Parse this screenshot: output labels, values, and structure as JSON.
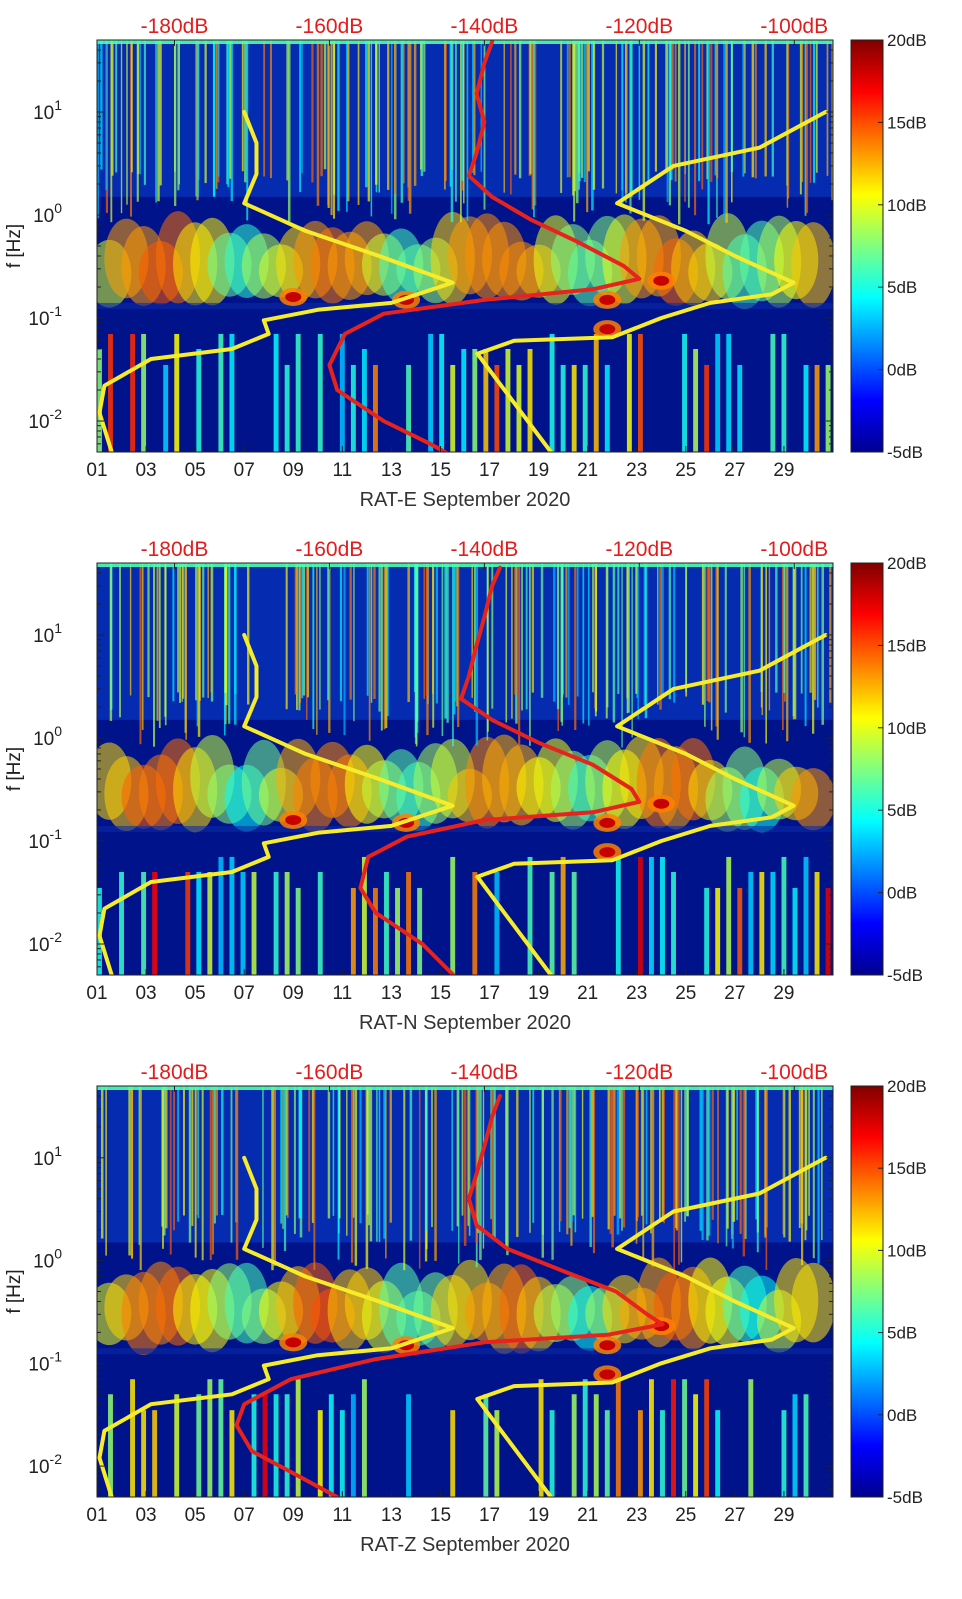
{
  "colors": {
    "background_low": "#00138a",
    "psd_curve": "#e8231e",
    "model_curves": "#f6ec2a",
    "top_axis_text": "#e51c1c"
  },
  "colormap_stops": [
    "#00008f",
    "#0000ff",
    "#0080ff",
    "#00ffff",
    "#80ff80",
    "#ffff00",
    "#ff8000",
    "#ff0000",
    "#800000"
  ],
  "chart_data": [
    {
      "type": "heatmap",
      "title": "",
      "xlabel": "RAT-E September 2020",
      "ylabel": "f [Hz]",
      "x_ticks": [
        "01",
        "03",
        "05",
        "07",
        "09",
        "11",
        "13",
        "15",
        "17",
        "19",
        "21",
        "23",
        "25",
        "27",
        "29"
      ],
      "x_tick_days": [
        1,
        3,
        5,
        7,
        9,
        11,
        13,
        15,
        17,
        19,
        21,
        23,
        25,
        27,
        29
      ],
      "xlim_days": [
        1,
        31
      ],
      "yscale": "log",
      "ylim_hz": [
        0.005,
        50
      ],
      "y_ticks": [
        {
          "base": "10",
          "exp": "-2",
          "value": 0.01
        },
        {
          "base": "10",
          "exp": "-1",
          "value": 0.1
        },
        {
          "base": "10",
          "exp": "0",
          "value": 1
        },
        {
          "base": "10",
          "exp": "1",
          "value": 10
        }
      ],
      "top_axis": {
        "labels": [
          "-180dB",
          "-160dB",
          "-140dB",
          "-120dB",
          "-100dB"
        ],
        "db": [
          -180,
          -160,
          -140,
          -120,
          -100
        ],
        "range_db": [
          -190,
          -95
        ]
      },
      "colorbar": {
        "labels": [
          "20dB",
          "15dB",
          "10dB",
          "5dB",
          "0dB",
          "-5dB"
        ],
        "values": [
          20,
          15,
          10,
          5,
          0,
          -5
        ],
        "range_db": [
          -5,
          20
        ]
      },
      "microseism_spots": [
        {
          "day": 9,
          "f": 0.16
        },
        {
          "day": 13.6,
          "f": 0.15
        },
        {
          "day": 21.8,
          "f": 0.15
        },
        {
          "day": 24,
          "f": 0.23
        },
        {
          "day": 21.8,
          "f": 0.078
        }
      ],
      "series": [
        {
          "name": "psd-curve",
          "axis": "db",
          "points": [
            [
              -139,
              48
            ],
            [
              -140,
              30
            ],
            [
              -141,
              15
            ],
            [
              -140,
              8
            ],
            [
              -141,
              4
            ],
            [
              -142,
              2.4
            ],
            [
              -139,
              1.5
            ],
            [
              -134,
              0.9
            ],
            [
              -128,
              0.55
            ],
            [
              -122,
              0.32
            ],
            [
              -120,
              0.24
            ],
            [
              -126,
              0.19
            ],
            [
              -140,
              0.15
            ],
            [
              -153,
              0.11
            ],
            [
              -158,
              0.07
            ],
            [
              -160,
              0.035
            ],
            [
              -159,
              0.02
            ],
            [
              -153,
              0.01
            ],
            [
              -147,
              0.006
            ],
            [
              -144,
              0.0045
            ]
          ]
        },
        {
          "name": "model-curve-low",
          "axis": "days",
          "points": [
            [
              1.6,
              0.005
            ],
            [
              1.1,
              0.012
            ],
            [
              1.3,
              0.022
            ],
            [
              3.2,
              0.04
            ],
            [
              6.5,
              0.05
            ],
            [
              8,
              0.07
            ],
            [
              7.8,
              0.095
            ],
            [
              10,
              0.12
            ],
            [
              13,
              0.14
            ],
            [
              15.5,
              0.22
            ],
            [
              12.5,
              0.4
            ],
            [
              9.5,
              0.7
            ],
            [
              7,
              1.3
            ],
            [
              7.5,
              2.5
            ],
            [
              7.5,
              5
            ],
            [
              7,
              10
            ]
          ]
        },
        {
          "name": "model-curve-high",
          "axis": "days",
          "points": [
            [
              19.5,
              0.005
            ],
            [
              16.5,
              0.045
            ],
            [
              18,
              0.06
            ],
            [
              22,
              0.065
            ],
            [
              24,
              0.1
            ],
            [
              26,
              0.14
            ],
            [
              28.5,
              0.17
            ],
            [
              29.4,
              0.22
            ],
            [
              27,
              0.4
            ],
            [
              25,
              0.7
            ],
            [
              22.2,
              1.3
            ],
            [
              24.5,
              3
            ],
            [
              28,
              4.5
            ],
            [
              30.7,
              10
            ]
          ]
        }
      ]
    },
    {
      "type": "heatmap",
      "title": "",
      "xlabel": "RAT-N September 2020",
      "ylabel": "f [Hz]",
      "x_ticks": [
        "01",
        "03",
        "05",
        "07",
        "09",
        "11",
        "13",
        "15",
        "17",
        "19",
        "21",
        "23",
        "25",
        "27",
        "29"
      ],
      "x_tick_days": [
        1,
        3,
        5,
        7,
        9,
        11,
        13,
        15,
        17,
        19,
        21,
        23,
        25,
        27,
        29
      ],
      "xlim_days": [
        1,
        31
      ],
      "yscale": "log",
      "ylim_hz": [
        0.005,
        50
      ],
      "y_ticks": [
        {
          "base": "10",
          "exp": "-2",
          "value": 0.01
        },
        {
          "base": "10",
          "exp": "-1",
          "value": 0.1
        },
        {
          "base": "10",
          "exp": "0",
          "value": 1
        },
        {
          "base": "10",
          "exp": "1",
          "value": 10
        }
      ],
      "top_axis": {
        "labels": [
          "-180dB",
          "-160dB",
          "-140dB",
          "-120dB",
          "-100dB"
        ],
        "db": [
          -180,
          -160,
          -140,
          -120,
          -100
        ],
        "range_db": [
          -190,
          -95
        ]
      },
      "colorbar": {
        "labels": [
          "20dB",
          "15dB",
          "10dB",
          "5dB",
          "0dB",
          "-5dB"
        ],
        "values": [
          20,
          15,
          10,
          5,
          0,
          -5
        ],
        "range_db": [
          -5,
          20
        ]
      },
      "microseism_spots": [
        {
          "day": 9,
          "f": 0.16
        },
        {
          "day": 13.6,
          "f": 0.15
        },
        {
          "day": 21.8,
          "f": 0.15
        },
        {
          "day": 24,
          "f": 0.23
        },
        {
          "day": 21.8,
          "f": 0.078
        }
      ],
      "series": [
        {
          "name": "psd-curve",
          "axis": "db",
          "points": [
            [
              -138,
              45
            ],
            [
              -139,
              30
            ],
            [
              -140,
              15
            ],
            [
              -141,
              8
            ],
            [
              -142,
              4
            ],
            [
              -143,
              2.4
            ],
            [
              -139,
              1.5
            ],
            [
              -133,
              0.9
            ],
            [
              -126,
              0.55
            ],
            [
              -121,
              0.32
            ],
            [
              -120,
              0.24
            ],
            [
              -126,
              0.19
            ],
            [
              -140,
              0.16
            ],
            [
              -150,
              0.11
            ],
            [
              -155,
              0.07
            ],
            [
              -156,
              0.035
            ],
            [
              -154,
              0.02
            ],
            [
              -148,
              0.01
            ],
            [
              -144,
              0.005
            ]
          ]
        },
        {
          "name": "model-curve-low",
          "axis": "days",
          "points": [
            [
              1.6,
              0.005
            ],
            [
              1.1,
              0.012
            ],
            [
              1.3,
              0.022
            ],
            [
              3.2,
              0.04
            ],
            [
              6.5,
              0.05
            ],
            [
              8,
              0.07
            ],
            [
              7.8,
              0.095
            ],
            [
              10,
              0.12
            ],
            [
              13,
              0.14
            ],
            [
              15.5,
              0.22
            ],
            [
              12.5,
              0.4
            ],
            [
              9.5,
              0.7
            ],
            [
              7,
              1.3
            ],
            [
              7.5,
              2.5
            ],
            [
              7.5,
              5
            ],
            [
              7,
              10
            ]
          ]
        },
        {
          "name": "model-curve-high",
          "axis": "days",
          "points": [
            [
              19.5,
              0.005
            ],
            [
              16.5,
              0.045
            ],
            [
              18,
              0.06
            ],
            [
              22,
              0.065
            ],
            [
              24,
              0.1
            ],
            [
              26,
              0.14
            ],
            [
              28.5,
              0.17
            ],
            [
              29.4,
              0.22
            ],
            [
              27,
              0.4
            ],
            [
              25,
              0.7
            ],
            [
              22.2,
              1.3
            ],
            [
              24.5,
              3
            ],
            [
              28,
              4.5
            ],
            [
              30.7,
              10
            ]
          ]
        }
      ]
    },
    {
      "type": "heatmap",
      "title": "",
      "xlabel": "RAT-Z September 2020",
      "ylabel": "f [Hz]",
      "x_ticks": [
        "01",
        "03",
        "05",
        "07",
        "09",
        "11",
        "13",
        "15",
        "17",
        "19",
        "21",
        "23",
        "25",
        "27",
        "29"
      ],
      "x_tick_days": [
        1,
        3,
        5,
        7,
        9,
        11,
        13,
        15,
        17,
        19,
        21,
        23,
        25,
        27,
        29
      ],
      "xlim_days": [
        1,
        31
      ],
      "yscale": "log",
      "ylim_hz": [
        0.005,
        50
      ],
      "y_ticks": [
        {
          "base": "10",
          "exp": "-2",
          "value": 0.01
        },
        {
          "base": "10",
          "exp": "-1",
          "value": 0.1
        },
        {
          "base": "10",
          "exp": "0",
          "value": 1
        },
        {
          "base": "10",
          "exp": "1",
          "value": 10
        }
      ],
      "top_axis": {
        "labels": [
          "-180dB",
          "-160dB",
          "-140dB",
          "-120dB",
          "-100dB"
        ],
        "db": [
          -180,
          -160,
          -140,
          -120,
          -100
        ],
        "range_db": [
          -190,
          -95
        ]
      },
      "colorbar": {
        "labels": [
          "20dB",
          "15dB",
          "10dB",
          "5dB",
          "0dB",
          "-5dB"
        ],
        "values": [
          20,
          15,
          10,
          5,
          0,
          -5
        ],
        "range_db": [
          -5,
          20
        ]
      },
      "microseism_spots": [
        {
          "day": 9,
          "f": 0.16
        },
        {
          "day": 13.6,
          "f": 0.15
        },
        {
          "day": 21.8,
          "f": 0.15
        },
        {
          "day": 24,
          "f": 0.23
        },
        {
          "day": 21.8,
          "f": 0.078
        }
      ],
      "series": [
        {
          "name": "psd-curve",
          "axis": "db",
          "points": [
            [
              -138,
              40
            ],
            [
              -139,
              25
            ],
            [
              -140,
              13
            ],
            [
              -141,
              7
            ],
            [
              -142,
              4
            ],
            [
              -141,
              2.2
            ],
            [
              -137,
              1.3
            ],
            [
              -130,
              0.8
            ],
            [
              -123,
              0.5
            ],
            [
              -119,
              0.3
            ],
            [
              -117,
              0.24
            ],
            [
              -124,
              0.19
            ],
            [
              -140,
              0.16
            ],
            [
              -154,
              0.11
            ],
            [
              -165,
              0.07
            ],
            [
              -171,
              0.04
            ],
            [
              -172,
              0.025
            ],
            [
              -170,
              0.014
            ],
            [
              -164,
              0.008
            ],
            [
              -159,
              0.005
            ]
          ]
        },
        {
          "name": "model-curve-low",
          "axis": "days",
          "points": [
            [
              1.6,
              0.005
            ],
            [
              1.1,
              0.012
            ],
            [
              1.3,
              0.022
            ],
            [
              3.2,
              0.04
            ],
            [
              6.5,
              0.05
            ],
            [
              8,
              0.07
            ],
            [
              7.8,
              0.095
            ],
            [
              10,
              0.12
            ],
            [
              13,
              0.14
            ],
            [
              15.5,
              0.22
            ],
            [
              12.5,
              0.4
            ],
            [
              9.5,
              0.7
            ],
            [
              7,
              1.3
            ],
            [
              7.5,
              2.5
            ],
            [
              7.5,
              5
            ],
            [
              7,
              10
            ]
          ]
        },
        {
          "name": "model-curve-high",
          "axis": "days",
          "points": [
            [
              19.5,
              0.005
            ],
            [
              16.5,
              0.045
            ],
            [
              18,
              0.06
            ],
            [
              22,
              0.065
            ],
            [
              24,
              0.1
            ],
            [
              26,
              0.14
            ],
            [
              28.5,
              0.17
            ],
            [
              29.4,
              0.22
            ],
            [
              27,
              0.4
            ],
            [
              25,
              0.7
            ],
            [
              22.2,
              1.3
            ],
            [
              24.5,
              3
            ],
            [
              28,
              4.5
            ],
            [
              30.7,
              10
            ]
          ]
        }
      ]
    }
  ]
}
